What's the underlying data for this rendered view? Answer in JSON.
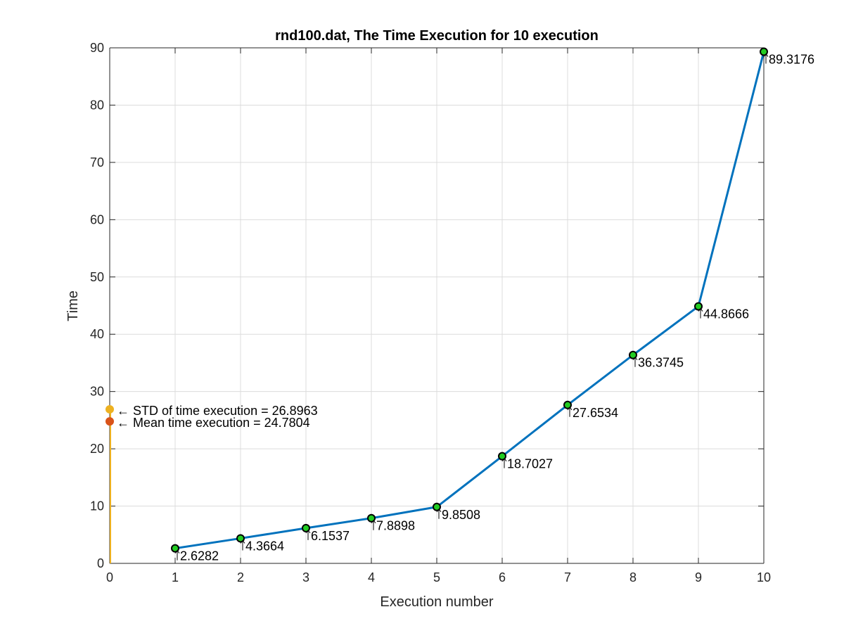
{
  "chart_data": {
    "type": "line",
    "title": "rnd100.dat, The Time Execution for 10 execution",
    "xlabel": "Execution number",
    "ylabel": "Time",
    "xlim": [
      0,
      10
    ],
    "ylim": [
      0,
      90
    ],
    "xticks": [
      0,
      1,
      2,
      3,
      4,
      5,
      6,
      7,
      8,
      9,
      10
    ],
    "yticks": [
      0,
      10,
      20,
      30,
      40,
      50,
      60,
      70,
      80,
      90
    ],
    "grid": true,
    "series": [
      {
        "x": [
          1,
          2,
          3,
          4,
          5,
          6,
          7,
          8,
          9,
          10
        ],
        "y": [
          2.6282,
          4.3664,
          6.1537,
          7.8898,
          9.8508,
          18.7027,
          27.6534,
          36.3745,
          44.8666,
          89.3176
        ],
        "labels": [
          "2.6282",
          "4.3664",
          "6.1537",
          "7.8898",
          "9.8508",
          "18.7027",
          "27.6534",
          "36.3745",
          "44.8666",
          "89.3176"
        ],
        "color": "#0072BD",
        "marker_face": "#22cc22",
        "marker_edge": "#000000"
      }
    ],
    "annotations": [
      {
        "x": 0,
        "y": 26.8963,
        "text": "← STD of time execution = 26.8963",
        "color": "#EDB120"
      },
      {
        "x": 0,
        "y": 24.7804,
        "text": "← Mean time execution = 24.7804",
        "color": "#D95319"
      }
    ],
    "colors": {
      "line": "#0072BD",
      "std": "#EDB120",
      "mean": "#D95319",
      "grid": "#dcdcdc",
      "axis": "#262626"
    }
  }
}
